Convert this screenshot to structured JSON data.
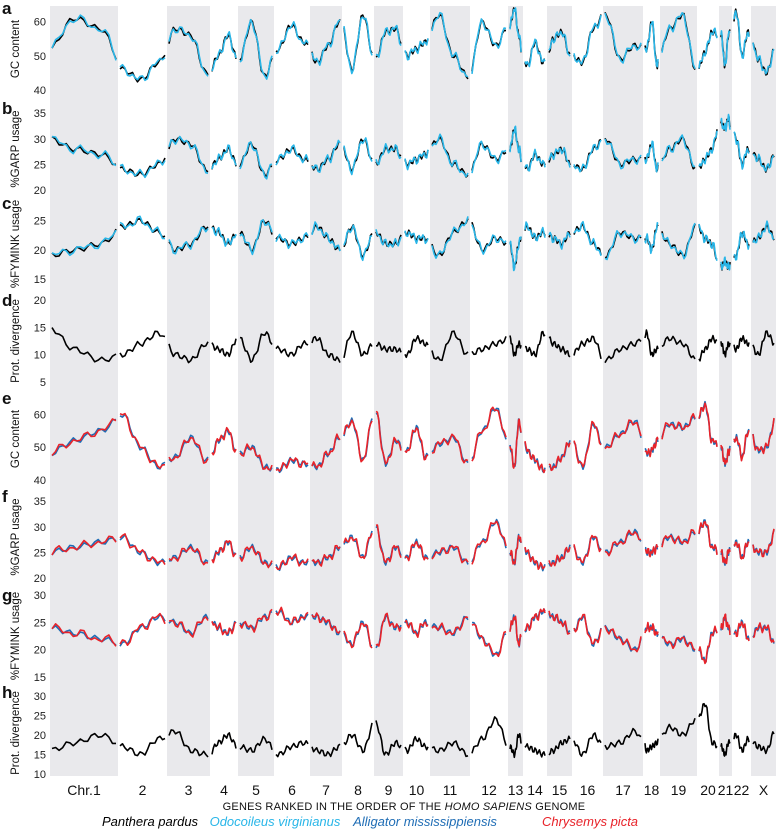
{
  "chart_data": {
    "type": "line",
    "xlabel_parts": [
      "GENES RANKED IN THE ORDER OF THE ",
      "HOMO SAPIENS",
      " GENOME"
    ],
    "chromosomes": [
      "Chr.1",
      "2",
      "3",
      "4",
      "5",
      "6",
      "7",
      "8",
      "9",
      "10",
      "11",
      "12",
      "13",
      "14",
      "15",
      "16",
      "17",
      "18",
      "19",
      "20",
      "21",
      "22",
      "X"
    ],
    "legend": [
      {
        "name": "Panthera pardus",
        "color": "#000000"
      },
      {
        "name": "Odocoileus virginianus",
        "color": "#29b6e8"
      },
      {
        "name": "Alligator mississippiensis",
        "color": "#1f6db5"
      },
      {
        "name": "Chrysemys picta",
        "color": "#e8232a"
      }
    ],
    "panels": [
      {
        "label": "a",
        "ylabel": "GC content",
        "yticks": [
          "40",
          "50",
          "60"
        ],
        "ylim": [
          40,
          64
        ],
        "series": [
          "Panthera pardus",
          "Odocoileus virginianus"
        ],
        "profile": [
          52,
          61,
          58,
          46,
          43,
          48,
          58,
          56,
          45,
          50,
          56,
          49,
          60,
          44,
          52,
          59,
          54,
          48,
          53,
          60,
          46,
          62,
          49,
          57,
          58,
          50,
          52,
          54,
          62,
          50,
          44,
          60,
          53,
          59,
          64,
          56,
          47,
          54,
          48,
          55,
          57,
          50,
          48,
          58,
          62,
          49,
          53,
          52,
          60,
          47,
          58,
          62,
          46,
          51,
          57,
          56,
          47,
          56,
          63,
          50,
          57,
          49,
          45,
          52
        ]
      },
      {
        "label": "b",
        "ylabel": "%GARP usage",
        "yticks": [
          "20",
          "25",
          "30",
          "35"
        ],
        "ylim": [
          20,
          36
        ],
        "series": [
          "Panthera pardus",
          "Odocoileus virginianus"
        ],
        "profile": [
          30,
          28,
          27,
          24,
          23,
          25,
          30,
          29,
          24,
          26,
          28,
          25,
          29,
          23,
          26,
          28,
          26,
          24,
          26,
          29,
          24,
          30,
          25,
          28,
          28,
          25,
          26,
          27,
          30,
          25,
          23,
          29,
          26,
          28,
          32,
          28,
          24,
          27,
          25,
          27,
          28,
          25,
          24,
          28,
          30,
          25,
          26,
          26,
          29,
          24,
          28,
          30,
          24,
          26,
          28,
          33,
          32,
          34,
          30,
          25,
          28,
          26,
          24,
          27
        ]
      },
      {
        "label": "c",
        "ylabel": "%FYMINK usage",
        "yticks": [
          "15",
          "20",
          "25"
        ],
        "ylim": [
          14,
          28
        ],
        "series": [
          "Panthera pardus",
          "Odocoileus virginianus"
        ],
        "profile": [
          19,
          20,
          21,
          24,
          25,
          23,
          20,
          21,
          24,
          23,
          21,
          23,
          20,
          25,
          22,
          21,
          22,
          24,
          22,
          20,
          24,
          19,
          23,
          21,
          21,
          23,
          22,
          22,
          19,
          23,
          25,
          20,
          22,
          21,
          17,
          21,
          24,
          22,
          23,
          22,
          21,
          23,
          24,
          21,
          19,
          23,
          22,
          22,
          20,
          24,
          21,
          19,
          24,
          22,
          21,
          17,
          18,
          17,
          19,
          23,
          21,
          22,
          24,
          22
        ]
      },
      {
        "label": "d",
        "ylabel": "Prot. divergence",
        "yticks": [
          "5",
          "10",
          "15",
          "20"
        ],
        "ylim": [
          5,
          20
        ],
        "series": [
          "Panthera pardus"
        ],
        "profile": [
          15,
          11,
          9,
          10,
          12,
          14,
          10,
          9,
          12,
          11,
          10,
          13,
          9,
          14,
          11,
          10,
          12,
          13,
          10,
          9,
          14,
          10,
          12,
          11,
          11,
          10,
          13,
          12,
          9,
          14,
          10,
          11,
          12,
          13,
          10,
          12,
          11,
          10,
          14,
          12,
          11,
          10,
          12,
          13,
          9,
          11,
          12,
          14,
          10,
          11,
          13,
          12,
          9,
          11,
          13,
          12,
          10,
          12,
          11,
          13,
          12,
          10,
          14,
          12
        ]
      },
      {
        "label": "e",
        "ylabel": "GC content",
        "yticks": [
          "40",
          "50",
          "60"
        ],
        "ylim": [
          40,
          65
        ],
        "series": [
          "Alligator mississippiensis",
          "Chrysemys picta"
        ],
        "profile": [
          48,
          52,
          55,
          60,
          50,
          44,
          47,
          53,
          46,
          52,
          55,
          48,
          50,
          44,
          43,
          46,
          45,
          44,
          48,
          53,
          58,
          46,
          61,
          45,
          52,
          49,
          56,
          47,
          51,
          53,
          45,
          55,
          62,
          50,
          44,
          58,
          49,
          46,
          43,
          44,
          47,
          52,
          44,
          57,
          50,
          54,
          58,
          48,
          49,
          52,
          57,
          56,
          59,
          63,
          52,
          50,
          45,
          48,
          53,
          47,
          55,
          49,
          50,
          58
        ]
      },
      {
        "label": "f",
        "ylabel": "%GARP usage",
        "yticks": [
          "20",
          "25",
          "30",
          "35"
        ],
        "ylim": [
          20,
          36
        ],
        "series": [
          "Alligator mississippiensis",
          "Chrysemys picta"
        ],
        "profile": [
          25,
          26,
          27,
          28,
          25,
          23,
          24,
          26,
          23,
          25,
          27,
          24,
          26,
          23,
          22,
          24,
          23,
          23,
          24,
          26,
          28,
          24,
          30,
          23,
          26,
          24,
          27,
          24,
          25,
          26,
          23,
          27,
          31,
          25,
          23,
          28,
          25,
          23,
          22,
          23,
          24,
          26,
          23,
          28,
          25,
          27,
          29,
          25,
          25,
          26,
          28,
          27,
          29,
          31,
          26,
          25,
          23,
          25,
          27,
          24,
          27,
          25,
          25,
          29
        ]
      },
      {
        "label": "g",
        "ylabel": "%FYMINK usage",
        "yticks": [
          "15",
          "20",
          "25",
          "30"
        ],
        "ylim": [
          15,
          30
        ],
        "series": [
          "Alligator mississippiensis",
          "Chrysemys picta"
        ],
        "profile": [
          24,
          23,
          22,
          21,
          24,
          26,
          25,
          23,
          26,
          24,
          23,
          25,
          24,
          26,
          27,
          25,
          26,
          26,
          25,
          23,
          21,
          25,
          20,
          26,
          24,
          25,
          23,
          25,
          24,
          23,
          26,
          22,
          19,
          24,
          26,
          21,
          24,
          26,
          27,
          26,
          25,
          23,
          26,
          21,
          24,
          22,
          20,
          24,
          24,
          23,
          21,
          22,
          20,
          18,
          23,
          24,
          26,
          24,
          23,
          25,
          22,
          24,
          24,
          21
        ]
      },
      {
        "label": "h",
        "ylabel": "Prot. divergence",
        "yticks": [
          "10",
          "15",
          "20",
          "25",
          "30"
        ],
        "ylim": [
          10,
          31
        ],
        "series": [
          "Panthera pardus"
        ],
        "profile": [
          16,
          18,
          20,
          17,
          15,
          19,
          21,
          16,
          15,
          18,
          20,
          17,
          16,
          19,
          15,
          17,
          18,
          16,
          15,
          17,
          20,
          16,
          23,
          15,
          18,
          16,
          19,
          17,
          16,
          18,
          15,
          19,
          24,
          17,
          15,
          20,
          17,
          16,
          15,
          16,
          18,
          19,
          15,
          20,
          17,
          18,
          21,
          16,
          17,
          18,
          22,
          20,
          24,
          28,
          18,
          17,
          15,
          18,
          20,
          16,
          19,
          17,
          16,
          21
        ]
      }
    ]
  }
}
